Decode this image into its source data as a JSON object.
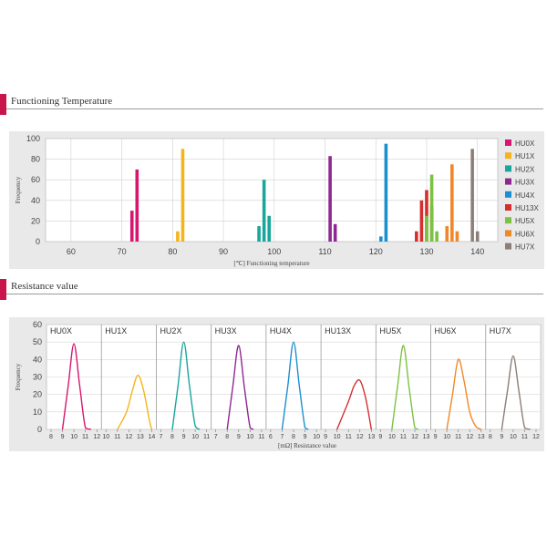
{
  "sections": {
    "temp_title": "Functioning Temperature",
    "res_title": "Resistance value"
  },
  "colors": {
    "HU0X": "#d6166f",
    "HU1X": "#f4b41b",
    "HU2X": "#1aa69a",
    "HU3X": "#8e2890",
    "HU4X": "#1b8fd0",
    "HU13X": "#d42e2e",
    "HU5X": "#7cc242",
    "HU6X": "#f0882a",
    "HU7X": "#8c7f78"
  },
  "chart_data": [
    {
      "type": "bar",
      "title": "Functioning Temperature",
      "ylabel": "Frequency",
      "xlabel": "[℃] Functioning temperature",
      "xlim": [
        55,
        144
      ],
      "ylim": [
        0,
        100
      ],
      "x_ticks": [
        60,
        70,
        80,
        90,
        100,
        110,
        120,
        130,
        140
      ],
      "y_ticks": [
        0,
        20,
        40,
        60,
        80,
        100
      ],
      "legend_position": "right",
      "series": [
        {
          "name": "HU0X",
          "x": [
            72,
            73
          ],
          "values": [
            30,
            70
          ]
        },
        {
          "name": "HU1X",
          "x": [
            81,
            82
          ],
          "values": [
            10,
            90
          ]
        },
        {
          "name": "HU2X",
          "x": [
            97,
            98,
            99
          ],
          "values": [
            15,
            60,
            25
          ]
        },
        {
          "name": "HU3X",
          "x": [
            111,
            112
          ],
          "values": [
            83,
            17
          ]
        },
        {
          "name": "HU4X",
          "x": [
            121,
            122
          ],
          "values": [
            5,
            95
          ]
        },
        {
          "name": "HU13X",
          "x": [
            128,
            129,
            130,
            131
          ],
          "values": [
            10,
            40,
            50,
            35
          ]
        },
        {
          "name": "HU5X",
          "x": [
            130,
            131,
            132,
            133
          ],
          "values": [
            25,
            65,
            10,
            0
          ]
        },
        {
          "name": "HU6X",
          "x": [
            134,
            135,
            136
          ],
          "values": [
            15,
            75,
            10
          ]
        },
        {
          "name": "HU7X",
          "x": [
            139,
            140
          ],
          "values": [
            90,
            10
          ]
        }
      ]
    },
    {
      "type": "line",
      "title": "Resistance value",
      "ylabel": "Frequency",
      "xlabel": "[mΩ] Resistance value",
      "ylim": [
        0,
        60
      ],
      "y_ticks": [
        0,
        10,
        20,
        30,
        40,
        50,
        60
      ],
      "panels": [
        {
          "name": "HU0X",
          "x_ticks": [
            8,
            9,
            10,
            11,
            12
          ],
          "x": [
            9,
            9.5,
            10,
            10.5,
            11,
            11.5
          ],
          "y": [
            0,
            25,
            49,
            25,
            1,
            0
          ]
        },
        {
          "name": "HU1X",
          "x_ticks": [
            10,
            11,
            12,
            13,
            14
          ],
          "x": [
            11,
            11.8,
            12.3,
            12.8,
            13.3,
            13.8,
            14
          ],
          "y": [
            0,
            10,
            22,
            31,
            22,
            5,
            0
          ]
        },
        {
          "name": "HU2X",
          "x_ticks": [
            7,
            8,
            9,
            10,
            11
          ],
          "x": [
            8,
            8.5,
            9,
            9.5,
            10,
            10.4
          ],
          "y": [
            0,
            25,
            50,
            25,
            2,
            0
          ]
        },
        {
          "name": "HU3X",
          "x_ticks": [
            7,
            8,
            9,
            10,
            11
          ],
          "x": [
            8,
            8.5,
            9,
            9.5,
            10,
            10.3
          ],
          "y": [
            0,
            25,
            48,
            24,
            1,
            0
          ]
        },
        {
          "name": "HU4X",
          "x_ticks": [
            6,
            7,
            8,
            9,
            10
          ],
          "x": [
            7,
            7.5,
            8,
            8.5,
            9,
            9.3
          ],
          "y": [
            0,
            25,
            50,
            25,
            1,
            0
          ]
        },
        {
          "name": "HU13X",
          "x_ticks": [
            9,
            10,
            11,
            12,
            13
          ],
          "x": [
            10,
            11,
            11.5,
            12,
            12.5,
            13
          ],
          "y": [
            0,
            16,
            25,
            28,
            18,
            0
          ]
        },
        {
          "name": "HU5X",
          "x_ticks": [
            9,
            10,
            11,
            12,
            13
          ],
          "x": [
            10,
            10.5,
            11,
            11.5,
            12,
            12.3
          ],
          "y": [
            0,
            25,
            48,
            24,
            1,
            0
          ]
        },
        {
          "name": "HU6X",
          "x_ticks": [
            9,
            10,
            11,
            12,
            13
          ],
          "x": [
            10,
            10.5,
            11,
            11.5,
            12,
            12.5,
            13
          ],
          "y": [
            0,
            20,
            40,
            28,
            10,
            2,
            0
          ]
        },
        {
          "name": "HU7X",
          "x_ticks": [
            8,
            9,
            10,
            11,
            12
          ],
          "x": [
            9,
            9.5,
            10,
            10.5,
            11,
            11.5
          ],
          "y": [
            0,
            22,
            42,
            22,
            1,
            0
          ]
        }
      ]
    }
  ]
}
